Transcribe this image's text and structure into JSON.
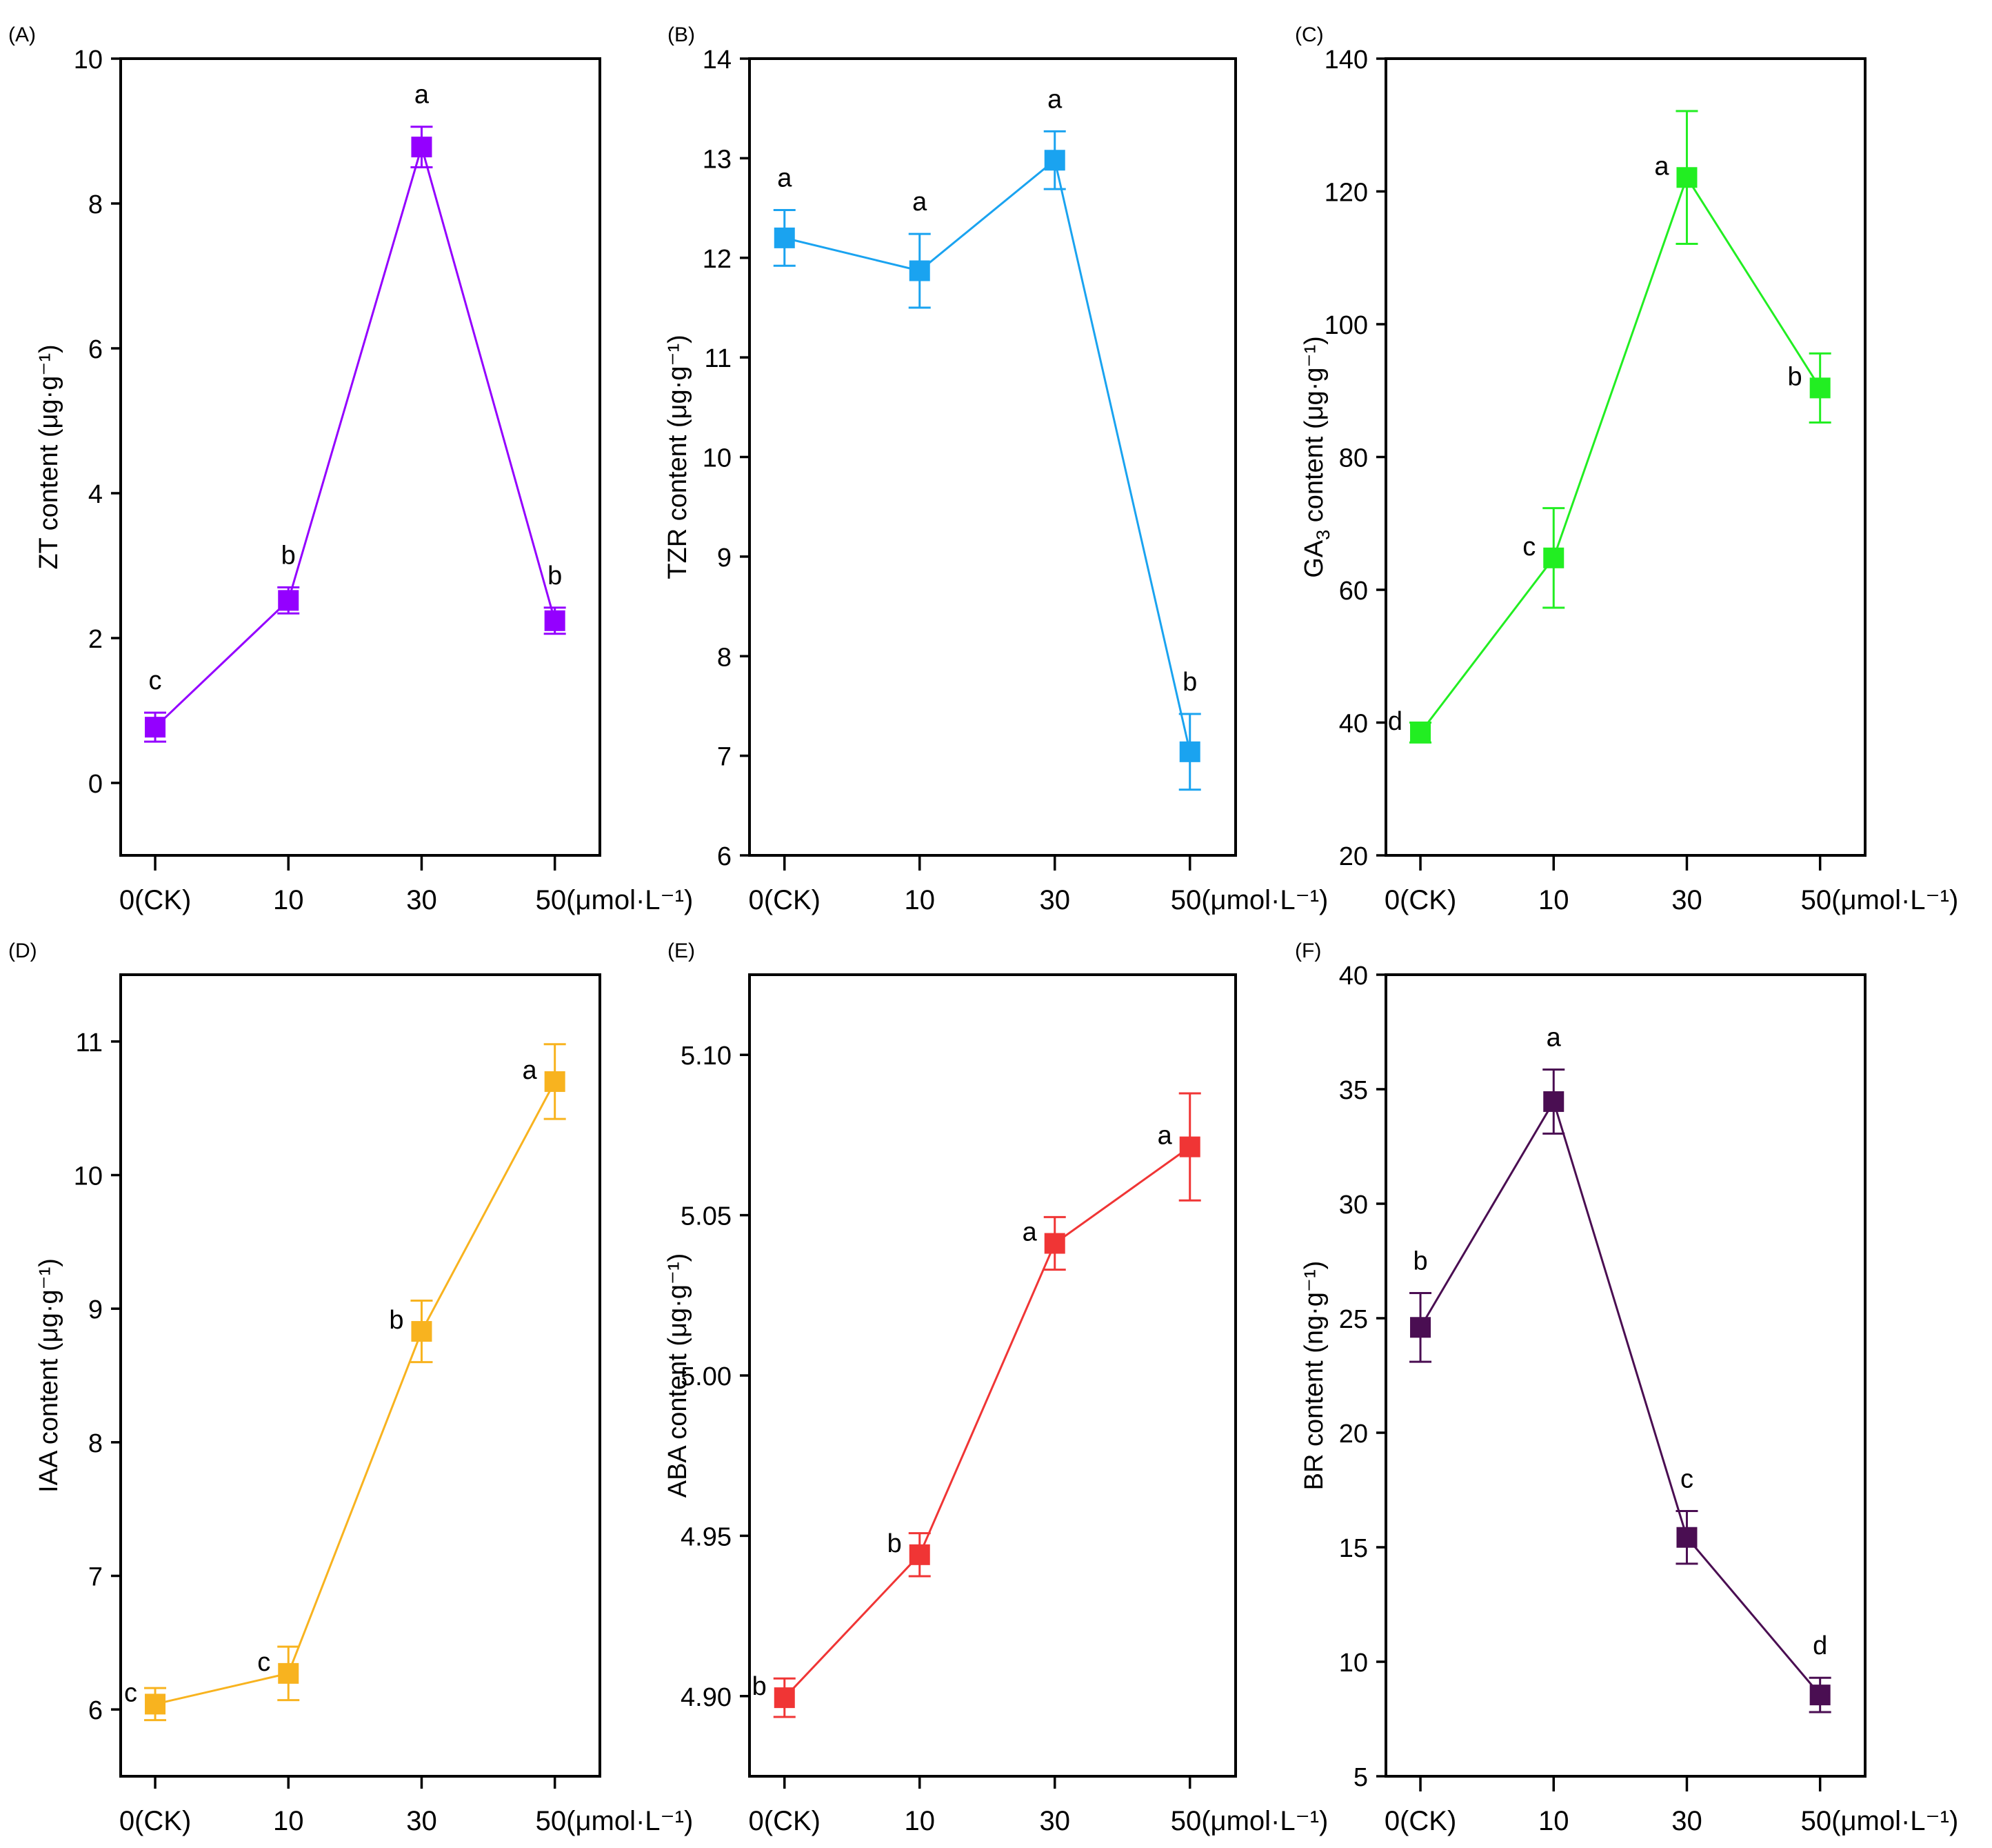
{
  "x_categories": [
    "0(CK)",
    "10",
    "30",
    "50(μmol·L⁻¹)"
  ],
  "chart_data": [
    {
      "panel": "(A)",
      "type": "line",
      "ylabel": "ZT content (μg·g⁻¹)",
      "ylim": [
        -1,
        10
      ],
      "yticks": [
        0,
        2,
        4,
        6,
        8,
        10
      ],
      "tick_decimals": 0,
      "color": "#9400FF",
      "values": [
        0.77,
        2.52,
        8.78,
        2.24
      ],
      "errors": [
        0.2,
        0.18,
        0.28,
        0.18
      ],
      "letters": [
        "c",
        "b",
        "a",
        "b"
      ],
      "letter_pos": [
        "above",
        "above",
        "above",
        "above"
      ]
    },
    {
      "panel": "(B)",
      "type": "line",
      "ylabel": "TZR content (μg·g⁻¹)",
      "ylim": [
        6,
        14
      ],
      "yticks": [
        6,
        7,
        8,
        9,
        10,
        11,
        12,
        13,
        14
      ],
      "tick_decimals": 0,
      "color": "#1AA3F0",
      "values": [
        12.2,
        11.87,
        12.98,
        7.04
      ],
      "errors": [
        0.28,
        0.37,
        0.29,
        0.38
      ],
      "letters": [
        "a",
        "a",
        "a",
        "b"
      ],
      "letter_pos": [
        "above",
        "above",
        "above",
        "above"
      ]
    },
    {
      "panel": "(C)",
      "type": "line",
      "ylabel": "GA3 content (μg·g⁻¹)",
      "ylim": [
        20,
        140
      ],
      "yticks": [
        20,
        40,
        60,
        80,
        100,
        120,
        140
      ],
      "tick_decimals": 0,
      "color": "#22EE22",
      "values": [
        38.5,
        64.8,
        122.1,
        90.4
      ],
      "errors": [
        1.5,
        7.5,
        10,
        5.2
      ],
      "letters": [
        "d",
        "c",
        "a",
        "b"
      ],
      "letter_pos": [
        "left",
        "left",
        "left",
        "left"
      ]
    },
    {
      "panel": "(D)",
      "type": "line",
      "ylabel": "IAA content (μg·g⁻¹)",
      "ylim": [
        5.5,
        11.5
      ],
      "yticks": [
        6,
        7,
        8,
        9,
        10,
        11
      ],
      "tick_decimals": 0,
      "color": "#F8B31F",
      "values": [
        6.04,
        6.27,
        8.83,
        10.7
      ],
      "errors": [
        0.12,
        0.2,
        0.23,
        0.28
      ],
      "letters": [
        "c",
        "c",
        "b",
        "a"
      ],
      "letter_pos": [
        "left",
        "left",
        "left",
        "left"
      ]
    },
    {
      "panel": "(E)",
      "type": "line",
      "ylabel": "ABA content (μg·g⁻¹)",
      "ylim": [
        4.875,
        5.125
      ],
      "yticks": [
        4.9,
        4.95,
        5.0,
        5.05,
        5.1
      ],
      "tick_decimals": 2,
      "color": "#F03535",
      "values": [
        4.8995,
        4.9441,
        5.0412,
        5.0713
      ],
      "errors": [
        0.006,
        0.0067,
        0.0082,
        0.0167
      ],
      "letters": [
        "b",
        "b",
        "a",
        "a"
      ],
      "letter_pos": [
        "left",
        "left",
        "left",
        "left"
      ]
    },
    {
      "panel": "(F)",
      "type": "line",
      "ylabel": "BR content (ng·g⁻¹)",
      "ylim": [
        5,
        40
      ],
      "yticks": [
        5,
        10,
        15,
        20,
        25,
        30,
        35,
        40
      ],
      "tick_decimals": 0,
      "color": "#4A0E52",
      "values": [
        24.6,
        34.46,
        15.43,
        8.55
      ],
      "errors": [
        1.5,
        1.4,
        1.15,
        0.75
      ],
      "letters": [
        "b",
        "a",
        "c",
        "d"
      ],
      "letter_pos": [
        "above",
        "above",
        "above",
        "above"
      ]
    }
  ]
}
